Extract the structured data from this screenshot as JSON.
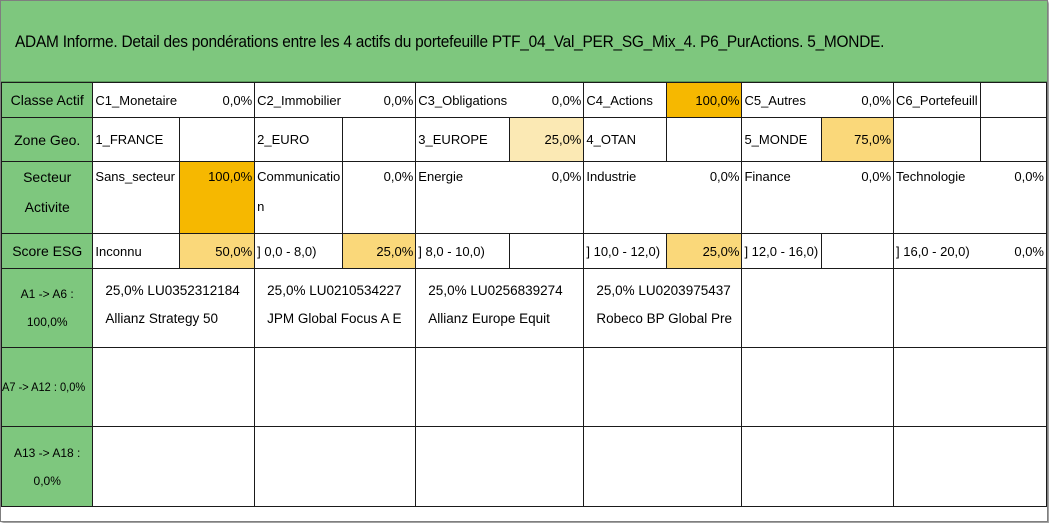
{
  "title": "ADAM Informe. Detail des pondérations entre les 4 actifs du portefeuille PTF_04_Val_PER_SG_Mix_4. P6_PurActions. 5_MONDE.",
  "classe_actif": {
    "label": "Classe Actif",
    "items": [
      {
        "name": "C1_Monetaire",
        "value": "0,0%"
      },
      {
        "name": "C2_Immobilier",
        "value": "0,0%"
      },
      {
        "name": "C3_Obligations",
        "value": "0,0%"
      },
      {
        "name": "C4_Actions",
        "value": "100,0%"
      },
      {
        "name": "C5_Autres",
        "value": "0,0%"
      },
      {
        "name": "C6_Portefeuill",
        "value": ""
      }
    ]
  },
  "zone_geo": {
    "label": "Zone Geo.",
    "items": [
      {
        "name": "1_FRANCE",
        "value": ""
      },
      {
        "name": "2_EURO",
        "value": ""
      },
      {
        "name": "3_EUROPE",
        "value": "25,0%"
      },
      {
        "name": "4_OTAN",
        "value": ""
      },
      {
        "name": "5_MONDE",
        "value": "75,0%"
      },
      {
        "name": "",
        "value": ""
      }
    ]
  },
  "secteur": {
    "label_line1": "Secteur",
    "label_line2": "Activite",
    "items": [
      {
        "name": "Sans_secteur",
        "value": "100,0%"
      },
      {
        "name": "Communication",
        "value": "0,0%"
      },
      {
        "name": "Energie",
        "value": "0,0%"
      },
      {
        "name": "Industrie",
        "value": "0,0%"
      },
      {
        "name": "Finance",
        "value": "0,0%"
      },
      {
        "name": "Technologie",
        "value": "0,0%"
      }
    ]
  },
  "score_esg": {
    "label": "Score ESG",
    "items": [
      {
        "name": "Inconnu",
        "value": "50,0%"
      },
      {
        "name": "] 0,0 - 8,0)",
        "value": "25,0%"
      },
      {
        "name": "] 8,0 - 10,0)",
        "value": ""
      },
      {
        "name": "] 10,0 - 12,0)",
        "value": "25,0%"
      },
      {
        "name": "] 12,0 - 16,0)",
        "value": ""
      },
      {
        "name": "] 16,0 - 20,0)",
        "value": "0,0%"
      }
    ]
  },
  "groups": [
    {
      "label_line1": "A1 -> A6 :",
      "label_line2": "100,0%",
      "assets": [
        {
          "line1": "25,0% LU0352312184",
          "line2": "Allianz Strategy 50"
        },
        {
          "line1": "25,0% LU0210534227",
          "line2": "JPM Global Focus A E"
        },
        {
          "line1": "25,0% LU0256839274",
          "line2": "Allianz Europe Equit"
        },
        {
          "line1": "25,0% LU0203975437",
          "line2": "Robeco BP Global Pre"
        }
      ]
    },
    {
      "label_line1": "A7 -> A12 : 0,0%",
      "label_line2": "",
      "assets": []
    },
    {
      "label_line1": "A13 -> A18 :",
      "label_line2": "0,0%",
      "assets": []
    }
  ]
}
